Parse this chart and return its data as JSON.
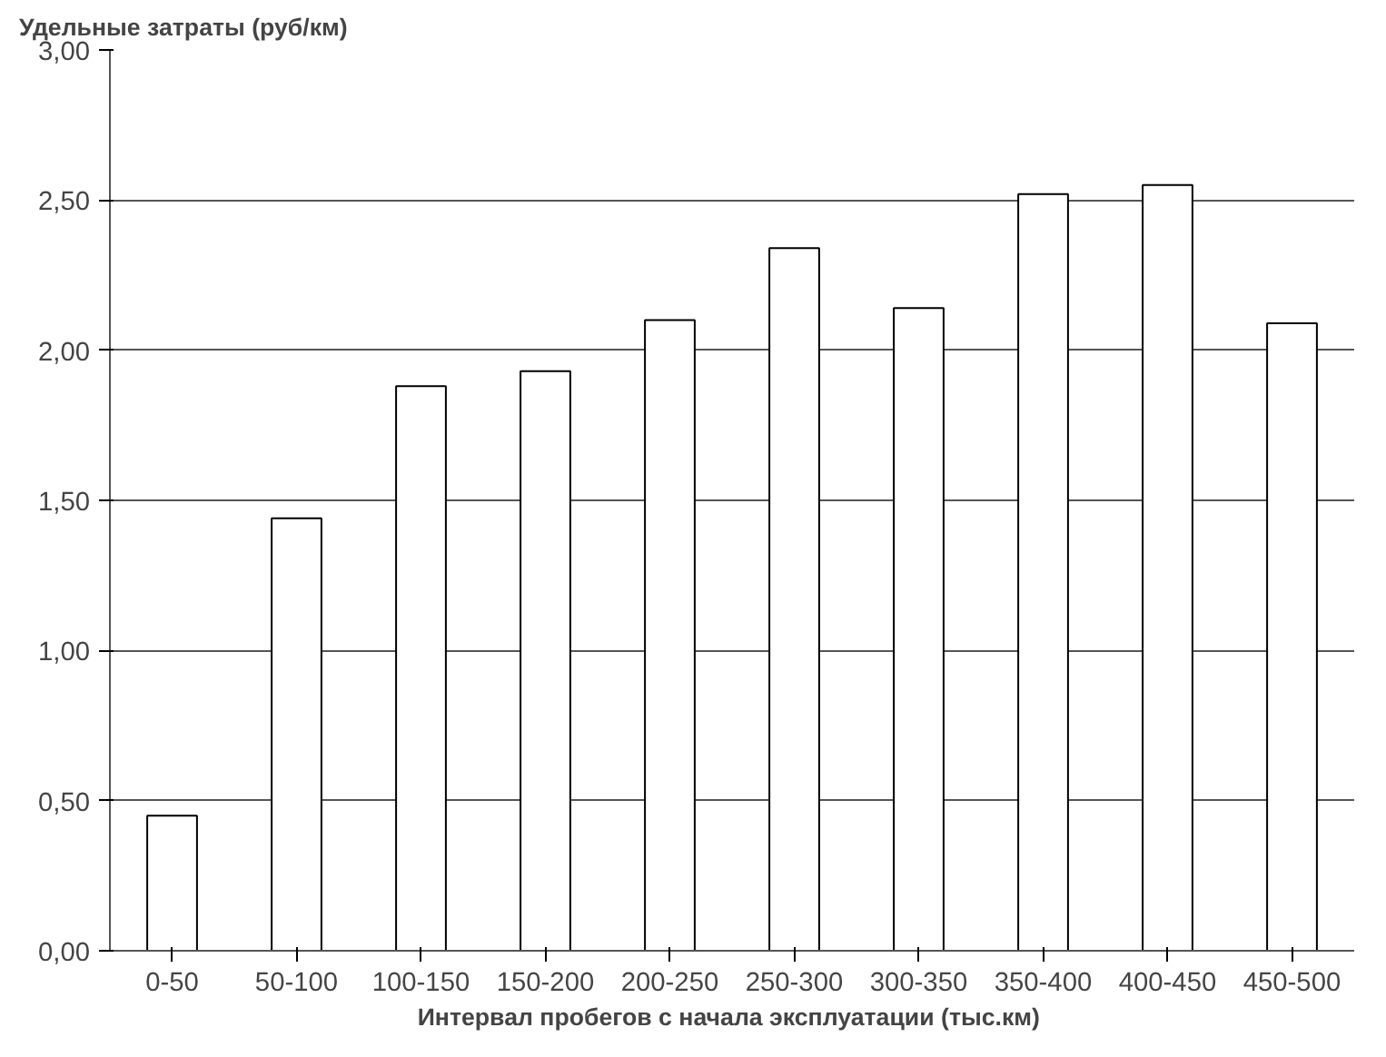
{
  "chart_data": {
    "type": "bar",
    "ylabel": "Удельные затраты (руб/км)",
    "xlabel": "Интервал пробегов с начала эксплуатации  (тыс.км)",
    "categories": [
      "0-50",
      "50-100",
      "100-150",
      "150-200",
      "200-250",
      "250-300",
      "300-350",
      "350-400",
      "400-450",
      "450-500"
    ],
    "values": [
      0.45,
      1.44,
      1.88,
      1.93,
      2.1,
      2.34,
      2.14,
      2.52,
      2.55,
      2.09
    ],
    "color": "#ffffff",
    "ylim": [
      0,
      3
    ],
    "yticks": [
      {
        "value": 0,
        "label": "0,00"
      },
      {
        "value": 0.5,
        "label": "0,50"
      },
      {
        "value": 1,
        "label": "1,00"
      },
      {
        "value": 1.5,
        "label": "1,50"
      },
      {
        "value": 2,
        "label": "2,00"
      },
      {
        "value": 2.5,
        "label": "2,50"
      },
      {
        "value": 3,
        "label": "3,00"
      }
    ],
    "grid": "y"
  }
}
